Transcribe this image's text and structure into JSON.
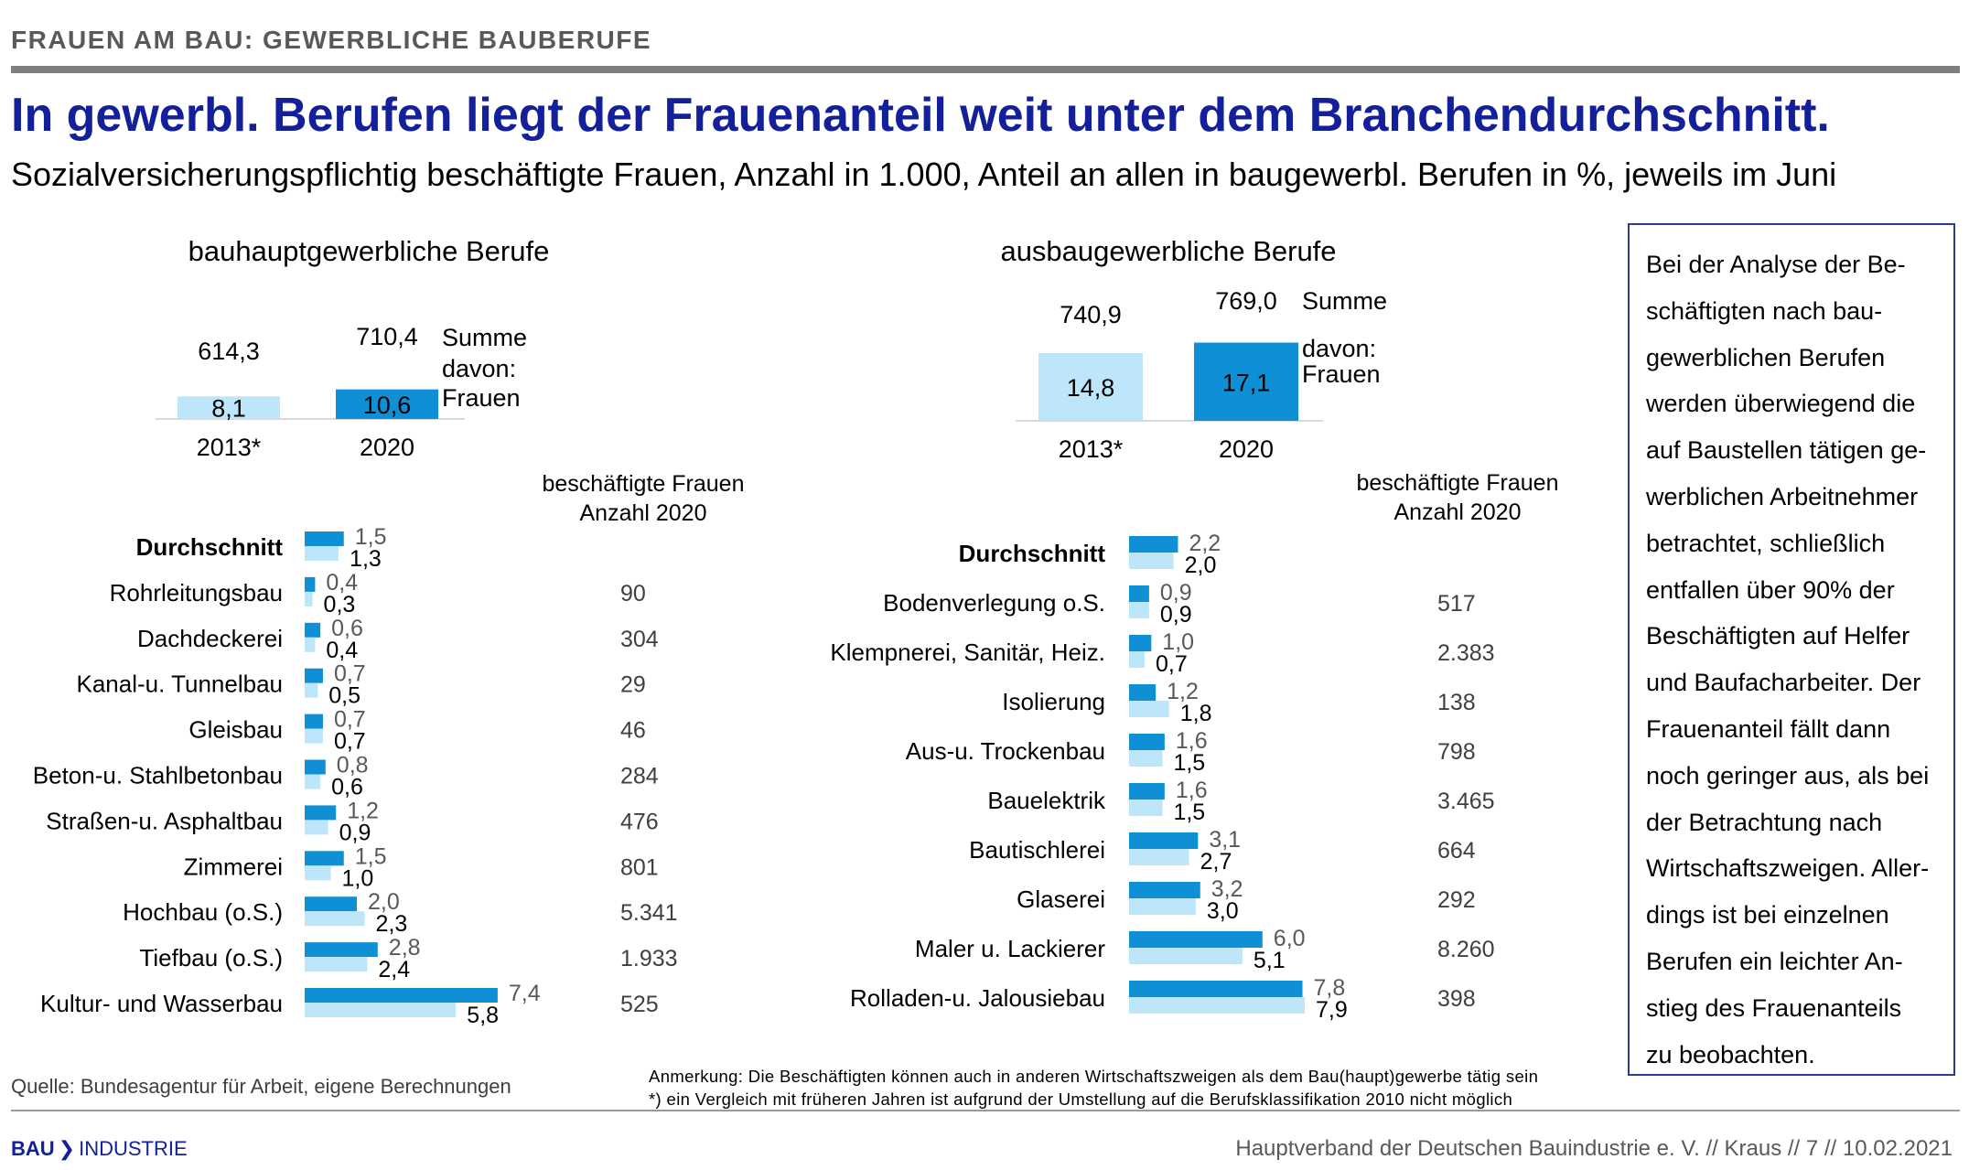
{
  "header": {
    "top_label": "FRAUEN AM BAU: GEWERBLICHE BAUBERUFE",
    "headline": "In gewerbl. Berufen liegt der Frauenanteil weit unter dem Branchendurchschnitt.",
    "subtitle": "Sozialversicherungspflichtig beschäftigte Frauen, Anzahl in 1.000, Anteil an allen in baugewerbl. Berufen in %, jeweils im Juni"
  },
  "colors": {
    "dark_blue": "#0f8fd6",
    "light_blue": "#bde6fb",
    "headline": "#14209a",
    "label_2020": "#595959"
  },
  "chart_data": [
    {
      "type": "bar",
      "title": "bauhauptgewerbliche Berufe",
      "categories": [
        "2013*",
        "2020"
      ],
      "series": [
        {
          "name": "Summe",
          "values": [
            614.3,
            710.4
          ],
          "labels": [
            "614,3",
            "710,4"
          ]
        },
        {
          "name": "davon: Frauen",
          "values": [
            8.1,
            10.6
          ],
          "labels": [
            "8,1",
            "10,6"
          ]
        }
      ],
      "legend": {
        "sum": "Summe",
        "women_line1": "davon:",
        "women_line2": "Frauen"
      }
    },
    {
      "type": "bar",
      "title": "ausbaugewerbliche Berufe",
      "categories": [
        "2013*",
        "2020"
      ],
      "series": [
        {
          "name": "Summe",
          "values": [
            740.9,
            769.0
          ],
          "labels": [
            "740,9",
            "769,0"
          ]
        },
        {
          "name": "davon: Frauen",
          "values": [
            14.8,
            17.1
          ],
          "labels": [
            "14,8",
            "17,1"
          ]
        }
      ],
      "legend": {
        "sum": "Summe",
        "women_line1": "davon:",
        "women_line2": "Frauen"
      }
    },
    {
      "type": "bar",
      "orientation": "horizontal",
      "categories": [
        "Durchschnitt",
        "Rohrleitungsbau",
        "Dachdeckerei",
        "Kanal-u. Tunnelbau",
        "Gleisbau",
        "Beton-u. Stahlbetonbau",
        "Straßen-u. Asphaltbau",
        "Zimmerei",
        "Hochbau (o.S.)",
        "Tiefbau (o.S.)",
        "Kultur- und Wasserbau"
      ],
      "series": [
        {
          "name": "2020",
          "values": [
            1.5,
            0.4,
            0.6,
            0.7,
            0.7,
            0.8,
            1.2,
            1.5,
            2.0,
            2.8,
            7.4
          ],
          "labels": [
            "1,5",
            "0,4",
            "0,6",
            "0,7",
            "0,7",
            "0,8",
            "1,2",
            "1,5",
            "2,0",
            "2,8",
            "7,4"
          ]
        },
        {
          "name": "2013",
          "values": [
            1.3,
            0.3,
            0.4,
            0.5,
            0.7,
            0.6,
            0.9,
            1.0,
            2.3,
            2.4,
            5.8
          ],
          "labels": [
            "1,3",
            "0,3",
            "0,4",
            "0,5",
            "0,7",
            "0,6",
            "0,9",
            "1,0",
            "2,3",
            "2,4",
            "5,8"
          ]
        }
      ],
      "count_header": [
        "beschäftigte Frauen",
        "Anzahl 2020"
      ],
      "counts": [
        "",
        "90",
        "304",
        "29",
        "46",
        "284",
        "476",
        "801",
        "5.341",
        "1.933",
        "525"
      ]
    },
    {
      "type": "bar",
      "orientation": "horizontal",
      "categories": [
        "Durchschnitt",
        "Bodenverlegung o.S.",
        "Klempnerei, Sanitär, Heiz.",
        "Isolierung",
        "Aus-u. Trockenbau",
        "Bauelektrik",
        "Bautischlerei",
        "Glaserei",
        "Maler u. Lackierer",
        "Rolladen-u. Jalousiebau"
      ],
      "series": [
        {
          "name": "2020",
          "values": [
            2.2,
            0.9,
            1.0,
            1.2,
            1.6,
            1.6,
            3.1,
            3.2,
            6.0,
            7.8
          ],
          "labels": [
            "2,2",
            "0,9",
            "1,0",
            "1,2",
            "1,6",
            "1,6",
            "3,1",
            "3,2",
            "6,0",
            "7,8"
          ]
        },
        {
          "name": "2013",
          "values": [
            2.0,
            0.9,
            0.7,
            1.8,
            1.5,
            1.5,
            2.7,
            3.0,
            5.1,
            7.9
          ],
          "labels": [
            "2,0",
            "0,9",
            "0,7",
            "1,8",
            "1,5",
            "1,5",
            "2,7",
            "3,0",
            "5,1",
            "7,9"
          ]
        }
      ],
      "count_header": [
        "beschäftigte Frauen",
        "Anzahl 2020"
      ],
      "counts": [
        "",
        "517",
        "2.383",
        "138",
        "798",
        "3.465",
        "664",
        "292",
        "8.260",
        "398"
      ]
    }
  ],
  "note_lines": [
    "Bei der Analyse der Be-",
    "schäftigten nach bau-",
    "gewerblichen Berufen",
    "werden überwiegend die",
    "auf Baustellen tätigen ge-",
    "werblichen Arbeitnehmer",
    "betrachtet, schließlich",
    "entfallen über 90% der",
    "Beschäftigten auf Helfer",
    "und Baufacharbeiter. Der",
    "Frauenanteil fällt dann",
    "noch geringer aus, als bei",
    "der Betrachtung nach",
    "Wirtschaftszweigen. Aller-",
    "dings ist bei einzelnen",
    "Berufen ein leichter An-",
    "stieg des Frauenanteils",
    "zu beobachten."
  ],
  "source": "Quelle: Bundesagentur für Arbeit, eigene Berechnungen",
  "remarks": [
    "Anmerkung: Die Beschäftigten können auch in anderen Wirtschaftszweigen als dem Bau(haupt)gewerbe tätig sein",
    "*) ein Vergleich mit früheren Jahren ist aufgrund der Umstellung auf die Berufsklassifikation 2010 nicht möglich"
  ],
  "footer": {
    "logo_left": "BAU",
    "logo_right": "INDUSTRIE",
    "text": "Hauptverband der Deutschen Bauindustrie e. V.  //  Kraus  //        7        //  10.02.2021"
  }
}
